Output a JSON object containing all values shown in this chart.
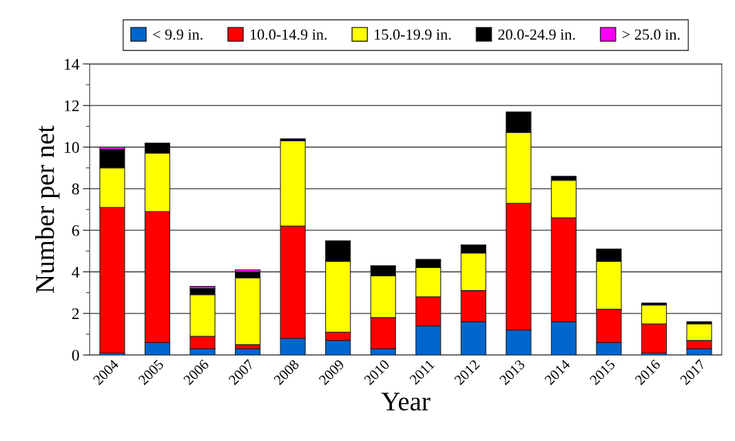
{
  "chart_data": {
    "type": "bar",
    "stacked": true,
    "xlabel": "Year",
    "ylabel": "Number per net",
    "categories": [
      "2004",
      "2005",
      "2006",
      "2007",
      "2008",
      "2009",
      "2010",
      "2011",
      "2012",
      "2013",
      "2014",
      "2015",
      "2016",
      "2017"
    ],
    "series": [
      {
        "name": "< 9.9 in.",
        "color": "#0066cc",
        "values": [
          0.1,
          0.6,
          0.3,
          0.3,
          0.8,
          0.7,
          0.3,
          1.4,
          1.6,
          1.2,
          1.6,
          0.6,
          0.1,
          0.3
        ]
      },
      {
        "name": "10.0-14.9 in.",
        "color": "#ff0000",
        "values": [
          7.0,
          6.3,
          0.6,
          0.2,
          5.4,
          0.4,
          1.5,
          1.4,
          1.5,
          6.1,
          5.0,
          1.6,
          1.4,
          0.4
        ]
      },
      {
        "name": "15.0-19.9 in.",
        "color": "#ffff00",
        "values": [
          1.9,
          2.8,
          2.0,
          3.2,
          4.1,
          3.4,
          2.0,
          1.4,
          1.8,
          3.4,
          1.8,
          2.3,
          0.9,
          0.8
        ]
      },
      {
        "name": "20.0-24.9 in.",
        "color": "#000000",
        "values": [
          0.9,
          0.5,
          0.3,
          0.3,
          0.1,
          1.0,
          0.5,
          0.4,
          0.4,
          1.0,
          0.2,
          0.6,
          0.1,
          0.1
        ]
      },
      {
        "name": "> 25.0 in.",
        "color": "#ff00ff",
        "values": [
          0.1,
          null,
          0.1,
          0.1,
          null,
          null,
          null,
          null,
          null,
          null,
          null,
          null,
          null,
          null
        ]
      }
    ],
    "ylim": [
      0,
      14
    ],
    "yticks": [
      0,
      {
        "value": 1,
        "label": null
      },
      2,
      {
        "value": 3,
        "label": null
      },
      4,
      {
        "value": 5,
        "label": null
      },
      6,
      {
        "value": 7,
        "label": null
      },
      8,
      {
        "value": 9,
        "label": null
      },
      10,
      {
        "value": 11,
        "label": null
      },
      12,
      {
        "value": 13,
        "label": null
      },
      14
    ],
    "grid": "y",
    "legend": "top"
  }
}
